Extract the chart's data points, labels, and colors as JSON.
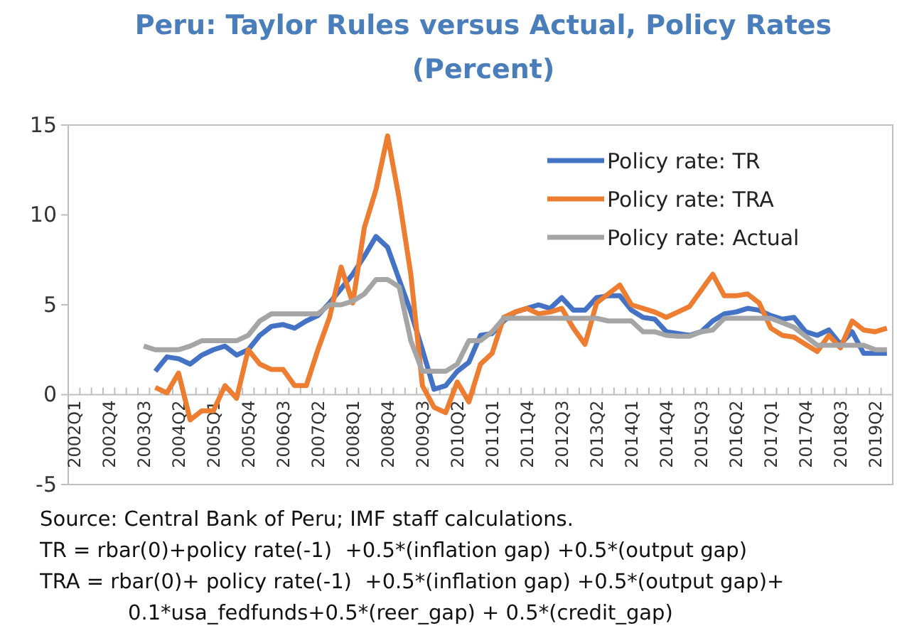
{
  "chart_data": {
    "type": "line",
    "title": "Peru: Taylor Rules versus Actual, Policy Rates",
    "subtitle": "(Percent)",
    "categories": [
      "2002Q1",
      null,
      null,
      "2002Q4",
      null,
      null,
      "2003Q3",
      null,
      null,
      "2004Q2",
      null,
      null,
      "2005Q1",
      null,
      null,
      "2005Q4",
      null,
      null,
      "2006Q3",
      null,
      null,
      "2007Q2",
      null,
      null,
      "2008Q1",
      null,
      null,
      "2008Q4",
      null,
      null,
      "2009Q3",
      null,
      null,
      "2010Q2",
      null,
      null,
      "2011Q1",
      null,
      null,
      "2011Q4",
      null,
      null,
      "2012Q3",
      null,
      null,
      "2013Q2",
      null,
      null,
      "2014Q1",
      null,
      null,
      "2014Q4",
      null,
      null,
      "2015Q3",
      null,
      null,
      "2016Q2",
      null,
      null,
      "2017Q1",
      null,
      null,
      "2017Q4",
      null,
      null,
      "2018Q3",
      null,
      null,
      "2019Q2",
      null
    ],
    "series": [
      {
        "name": "Policy rate: TR",
        "color": "#4472c4",
        "values": [
          null,
          null,
          null,
          null,
          null,
          null,
          null,
          1.3,
          2.1,
          2.0,
          1.7,
          2.2,
          2.5,
          2.7,
          2.2,
          2.5,
          3.3,
          3.8,
          3.9,
          3.7,
          4.1,
          4.4,
          5.1,
          5.9,
          6.7,
          7.7,
          8.8,
          8.2,
          6.4,
          4.6,
          2.5,
          0.3,
          0.5,
          1.3,
          1.8,
          3.3,
          3.4,
          4.1,
          4.6,
          4.8,
          5.0,
          4.8,
          5.4,
          4.7,
          4.7,
          5.4,
          5.5,
          5.5,
          4.7,
          4.3,
          4.2,
          3.5,
          3.4,
          3.3,
          3.5,
          4.1,
          4.5,
          4.6,
          4.8,
          4.7,
          4.4,
          4.2,
          4.3,
          3.5,
          3.3,
          3.6,
          2.8,
          3.5,
          2.3,
          2.3,
          2.3
        ]
      },
      {
        "name": "Policy rate: TRA",
        "color": "#ed7d31",
        "values": [
          null,
          null,
          null,
          null,
          null,
          null,
          null,
          0.4,
          0.1,
          1.2,
          -1.4,
          -0.9,
          -0.9,
          0.5,
          -0.2,
          2.5,
          1.7,
          1.4,
          1.4,
          0.5,
          0.5,
          2.5,
          4.3,
          7.1,
          5.1,
          9.3,
          11.4,
          14.4,
          10.9,
          6.7,
          0.5,
          -0.7,
          -1.0,
          0.7,
          -0.4,
          1.7,
          2.3,
          4.3,
          4.6,
          4.8,
          4.5,
          4.6,
          4.8,
          3.7,
          2.8,
          5.1,
          5.6,
          6.1,
          5.0,
          4.8,
          4.6,
          4.3,
          4.6,
          4.9,
          5.8,
          6.7,
          5.5,
          5.5,
          5.6,
          5.1,
          3.7,
          3.3,
          3.2,
          2.8,
          2.4,
          3.3,
          2.6,
          4.1,
          3.6,
          3.5,
          3.7
        ]
      },
      {
        "name": "Policy rate: Actual",
        "color": "#a5a5a5",
        "values": [
          null,
          null,
          null,
          null,
          null,
          null,
          2.7,
          2.5,
          2.5,
          2.5,
          2.7,
          3.0,
          3.0,
          3.0,
          3.0,
          3.3,
          4.1,
          4.5,
          4.5,
          4.5,
          4.5,
          4.5,
          5.0,
          5.0,
          5.2,
          5.6,
          6.4,
          6.4,
          6.0,
          3.0,
          1.3,
          1.3,
          1.3,
          1.7,
          3.0,
          3.0,
          3.5,
          4.25,
          4.25,
          4.25,
          4.25,
          4.25,
          4.25,
          4.25,
          4.25,
          4.25,
          4.1,
          4.1,
          4.1,
          3.5,
          3.5,
          3.3,
          3.25,
          3.25,
          3.5,
          3.6,
          4.25,
          4.25,
          4.25,
          4.25,
          4.25,
          4.0,
          3.75,
          3.25,
          2.75,
          2.75,
          2.75,
          2.75,
          2.75,
          2.5,
          2.5
        ]
      }
    ],
    "ylim": [
      -5,
      15
    ],
    "yticks": [
      -5,
      0,
      5,
      10,
      15
    ],
    "grid": false,
    "legend": "top right",
    "marker": "none",
    "line_style": "solid",
    "annotations": [
      "Source: Central Bank of Peru; IMF staff calculations.",
      "TR = rbar(0)+policy rate(-1)  +0.5*(inflation gap) +0.5*(output gap)",
      "TRA = rbar(0)+ policy rate(-1)  +0.5*(inflation gap) +0.5*(output gap)+ 0.1*usa_fedfunds+0.5*(reer_gap) + 0.5*(credit_gap)"
    ]
  }
}
